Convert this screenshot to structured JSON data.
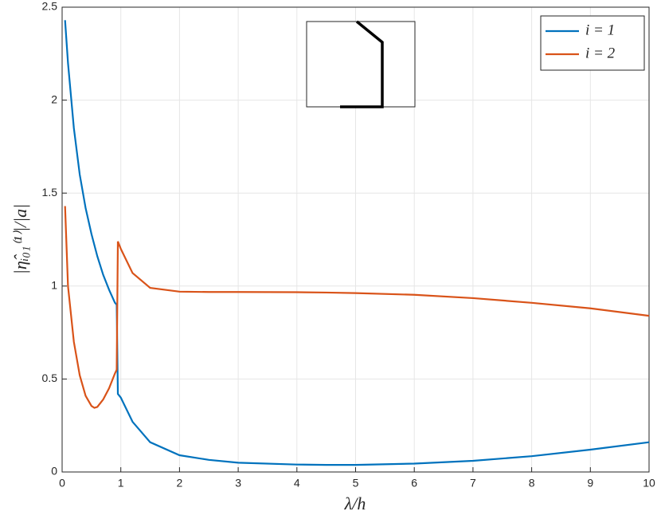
{
  "chart_data": {
    "type": "line",
    "xlabel": "λ/h",
    "ylabel": "|η̂ᵢ₀₁⁽¹⁾|/|a|",
    "x": [
      0.05,
      0.1,
      0.2,
      0.3,
      0.4,
      0.5,
      0.55,
      0.6,
      0.7,
      0.8,
      0.9,
      0.93,
      0.95,
      1,
      1.2,
      1.5,
      2,
      2.5,
      3,
      4,
      4.5,
      5,
      6,
      7,
      8,
      9,
      10
    ],
    "series": [
      {
        "name": "i = 1",
        "color": "#0072bd",
        "values": [
          2.43,
          2.2,
          1.85,
          1.6,
          1.42,
          1.28,
          1.22,
          1.16,
          1.06,
          0.98,
          0.91,
          0.9,
          0.42,
          0.4,
          0.27,
          0.16,
          0.09,
          0.065,
          0.05,
          0.04,
          0.038,
          0.038,
          0.045,
          0.06,
          0.085,
          0.12,
          0.16
        ]
      },
      {
        "name": "i = 2",
        "color": "#d95319",
        "values": [
          1.43,
          1.0,
          0.7,
          0.52,
          0.41,
          0.355,
          0.345,
          0.35,
          0.39,
          0.45,
          0.53,
          0.55,
          1.24,
          1.2,
          1.07,
          0.99,
          0.97,
          0.968,
          0.968,
          0.967,
          0.965,
          0.962,
          0.953,
          0.935,
          0.91,
          0.88,
          0.84
        ]
      }
    ],
    "xlim": [
      0,
      10
    ],
    "xticks": [
      0,
      1,
      2,
      3,
      4,
      5,
      6,
      7,
      8,
      9,
      10
    ],
    "ylim": [
      0,
      2.5
    ],
    "yticks": [
      0,
      0.5,
      1,
      1.5,
      2,
      2.5
    ],
    "grid": true,
    "legend": "top-right"
  }
}
